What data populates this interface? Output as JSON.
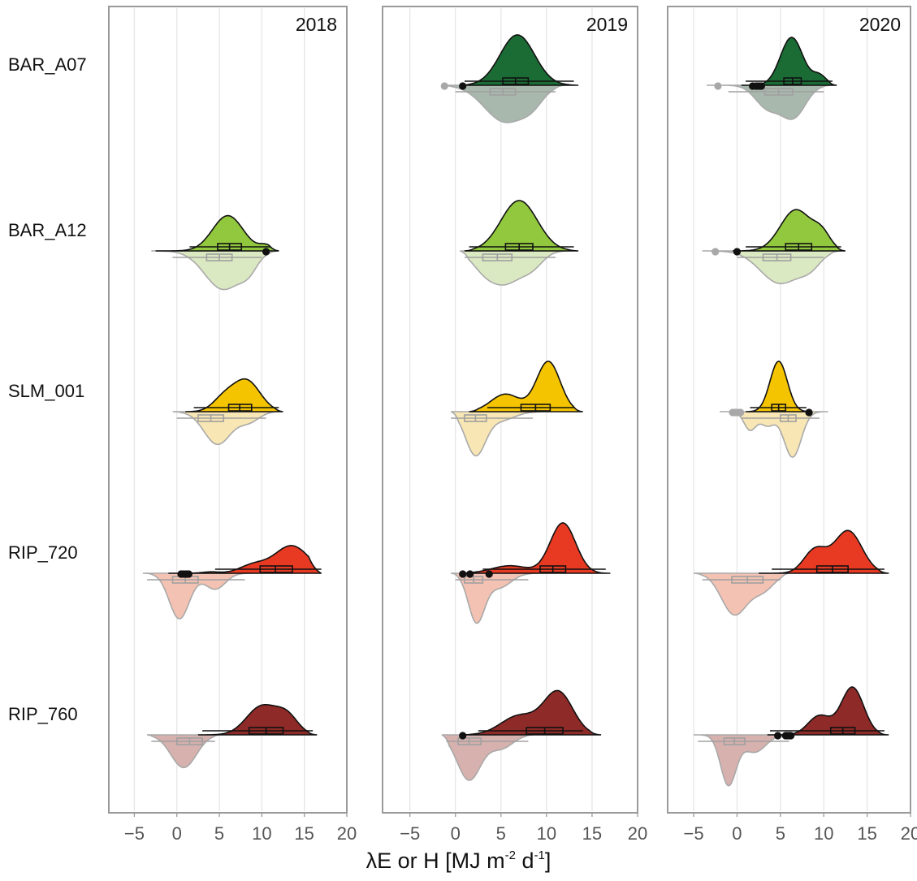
{
  "chart_data": {
    "type": "split-violin",
    "x_axis": {
      "label_prefix": "λE or H [MJ m",
      "label_exp1": "-2",
      "label_mid": " d",
      "label_exp2": "-1",
      "label_suffix": "]",
      "range": [
        -8,
        20
      ],
      "ticks": [
        -5,
        0,
        5,
        10,
        15,
        20
      ],
      "tick_labels": [
        "−5",
        "0",
        "5",
        "10",
        "15",
        "20"
      ],
      "grid": true
    },
    "sites": [
      "BAR_A07",
      "BAR_A12",
      "SLM_001",
      "RIP_720",
      "RIP_760"
    ],
    "years": [
      "2018",
      "2019",
      "2020"
    ],
    "series_note_upper": "λE",
    "series_note_lower": "H",
    "colors": {
      "BAR_A07": {
        "upper": "#1b6b35",
        "lower": "#a9b8ac"
      },
      "BAR_A12": {
        "upper": "#92c83e",
        "lower": "#dbe9c2"
      },
      "SLM_001": {
        "upper": "#f5c400",
        "lower": "#f8e6b4"
      },
      "RIP_720": {
        "upper": "#e83a23",
        "lower": "#f4c2b2"
      },
      "RIP_760": {
        "upper": "#8e2a28",
        "lower": "#d7b1ae"
      }
    },
    "panels": [
      {
        "year": "2018",
        "violins": [
          null,
          {
            "site": "BAR_A12",
            "upper": {
              "range": [
                -2.5,
                12
              ],
              "peaks": [
                [
                  6,
                  1.0,
                  1.8
                ],
                [
                  10.5,
                  0.15,
                  0.8
                ]
              ],
              "q": [
                4.8,
                6.2,
                7.6
              ],
              "whisker": [
                1.5,
                11
              ],
              "outliers": [
                10.5
              ],
              "amp": 0.7
            },
            "lower": {
              "range": [
                -3,
                12
              ],
              "peaks": [
                [
                  5.5,
                  1.0,
                  2.2
                ],
                [
                  8.5,
                  0.3,
                  1.0
                ]
              ],
              "q": [
                3.5,
                5.0,
                6.5
              ],
              "whisker": [
                -0.5,
                10
              ],
              "outliers": [],
              "amp": 0.85
            }
          },
          {
            "site": "SLM_001",
            "upper": {
              "range": [
                1,
                12.5
              ],
              "peaks": [
                [
                  8.2,
                  1.0,
                  1.6
                ],
                [
                  5.5,
                  0.4,
                  1.3
                ]
              ],
              "q": [
                6.1,
                7.4,
                8.8
              ],
              "whisker": [
                2,
                12
              ],
              "outliers": [],
              "amp": 0.65
            },
            "lower": {
              "range": [
                -0.5,
                12
              ],
              "peaks": [
                [
                  4.8,
                  1.0,
                  1.6
                ],
                [
                  8.5,
                  0.3,
                  1.2
                ]
              ],
              "q": [
                2.5,
                4.0,
                5.5
              ],
              "whisker": [
                0,
                10.5
              ],
              "outliers": [],
              "amp": 0.72
            }
          },
          {
            "site": "RIP_720",
            "upper": {
              "range": [
                -1,
                17
              ],
              "peaks": [
                [
                  13.5,
                  1.0,
                  2.0
                ],
                [
                  9,
                  0.3,
                  1.6
                ],
                [
                  4,
                  0.05,
                  1.0
                ]
              ],
              "q": [
                9.8,
                11.6,
                13.6
              ],
              "whisker": [
                4.5,
                17
              ],
              "outliers": [
                0.5,
                0.8,
                1.1,
                1.4
              ],
              "amp": 0.55
            },
            "lower": {
              "range": [
                -4,
                9
              ],
              "peaks": [
                [
                  0.3,
                  1.0,
                  1.2
                ],
                [
                  4.5,
                  0.35,
                  1.2
                ]
              ],
              "q": [
                -0.5,
                1.0,
                2.5
              ],
              "whisker": [
                -3.5,
                8
              ],
              "outliers": [],
              "amp": 1.0
            }
          },
          {
            "site": "RIP_760",
            "upper": {
              "range": [
                2.5,
                16.5
              ],
              "peaks": [
                [
                  10,
                  1.0,
                  1.8
                ],
                [
                  13,
                  0.6,
                  1.3
                ]
              ],
              "q": [
                8.5,
                10.5,
                12.5
              ],
              "whisker": [
                3,
                16
              ],
              "outliers": [],
              "amp": 0.6
            },
            "lower": {
              "range": [
                -3.5,
                5
              ],
              "peaks": [
                [
                  0.8,
                  1.0,
                  1.5
                ]
              ],
              "q": [
                0.0,
                1.5,
                3.0
              ],
              "whisker": [
                -3,
                4.5
              ],
              "outliers": [],
              "amp": 0.72
            }
          }
        ]
      },
      {
        "year": "2019",
        "violins": [
          {
            "site": "BAR_A07",
            "upper": {
              "range": [
                0.5,
                13.5
              ],
              "peaks": [
                [
                  6.8,
                  1.0,
                  1.9
                ]
              ],
              "q": [
                5.2,
                6.6,
                8.0
              ],
              "whisker": [
                1,
                13
              ],
              "outliers": [
                0.8
              ],
              "amp": 1.0
            },
            "lower": {
              "range": [
                -1.5,
                12
              ],
              "peaks": [
                [
                  5.5,
                  1.0,
                  2.3
                ],
                [
                  8.5,
                  0.3,
                  1.2
                ]
              ],
              "q": [
                3.8,
                5.2,
                6.6
              ],
              "whisker": [
                0,
                11
              ],
              "outliers": [
                -1.2
              ],
              "amp": 0.82
            }
          },
          {
            "site": "BAR_A12",
            "upper": {
              "range": [
                1,
                13.5
              ],
              "peaks": [
                [
                  7,
                  1.0,
                  2.0
                ]
              ],
              "q": [
                5.5,
                7.0,
                8.5
              ],
              "whisker": [
                1.5,
                13
              ],
              "outliers": [],
              "amp": 1.0
            },
            "lower": {
              "range": [
                0.5,
                12.5
              ],
              "peaks": [
                [
                  5.5,
                  1.0,
                  1.8
                ],
                [
                  3,
                  0.4,
                  1.3
                ],
                [
                  8.5,
                  0.4,
                  1.2
                ]
              ],
              "q": [
                3.0,
                4.6,
                6.2
              ],
              "whisker": [
                1,
                11
              ],
              "outliers": [],
              "amp": 0.75
            }
          },
          {
            "site": "SLM_001",
            "upper": {
              "range": [
                1.5,
                14
              ],
              "peaks": [
                [
                  10.2,
                  1.0,
                  1.3
                ],
                [
                  5.5,
                  0.35,
                  1.6
                ]
              ],
              "q": [
                7.2,
                8.8,
                10.4
              ],
              "whisker": [
                3.5,
                13
              ],
              "outliers": [],
              "amp": 1.0
            },
            "lower": {
              "range": [
                -0.5,
                9.5
              ],
              "peaks": [
                [
                  2.2,
                  1.0,
                  1.1
                ],
                [
                  5,
                  0.2,
                  1.5
                ]
              ],
              "q": [
                1.0,
                2.2,
                3.4
              ],
              "whisker": [
                -0.5,
                8.5
              ],
              "outliers": [],
              "amp": 0.97
            }
          },
          {
            "site": "RIP_720",
            "upper": {
              "range": [
                0.5,
                17
              ],
              "peaks": [
                [
                  11.8,
                  1.0,
                  1.4
                ],
                [
                  6,
                  0.15,
                  2.0
                ]
              ],
              "q": [
                9.3,
                10.7,
                12.1
              ],
              "whisker": [
                3,
                16.5
              ],
              "outliers": [
                0.8,
                1.6,
                3.7
              ],
              "amp": 1.0
            },
            "lower": {
              "range": [
                -0.5,
                9
              ],
              "peaks": [
                [
                  2.3,
                  1.0,
                  0.9
                ],
                [
                  4.8,
                  0.3,
                  1.3
                ]
              ],
              "q": [
                1.0,
                2.0,
                3.0
              ],
              "whisker": [
                0,
                8
              ],
              "outliers": [],
              "amp": 1.1
            }
          },
          {
            "site": "RIP_760",
            "upper": {
              "range": [
                0.5,
                16
              ],
              "peaks": [
                [
                  11.3,
                  1.0,
                  1.6
                ],
                [
                  7,
                  0.45,
                  2.0
                ]
              ],
              "q": [
                7.8,
                9.8,
                11.8
              ],
              "whisker": [
                2.5,
                14
              ],
              "outliers": [
                0.8
              ],
              "amp": 0.88
            },
            "lower": {
              "range": [
                -1.5,
                8.5
              ],
              "peaks": [
                [
                  1.5,
                  1.0,
                  1.3
                ],
                [
                  5,
                  0.3,
                  1.3
                ]
              ],
              "q": [
                0.3,
                1.5,
                2.8
              ],
              "whisker": [
                -1,
                8
              ],
              "outliers": [],
              "amp": 1.0
            }
          }
        ]
      },
      {
        "year": "2020",
        "violins": [
          {
            "site": "BAR_A07",
            "upper": {
              "range": [
                0.5,
                11.5
              ],
              "peaks": [
                [
                  6.3,
                  1.0,
                  1.3
                ],
                [
                  9.5,
                  0.2,
                  0.8
                ]
              ],
              "q": [
                5.4,
                6.4,
                7.4
              ],
              "whisker": [
                1,
                11
              ],
              "outliers": [
                1.8,
                2.2,
                2.5,
                2.8
              ],
              "amp": 0.95
            },
            "lower": {
              "range": [
                -3.5,
                11
              ],
              "peaks": [
                [
                  6.5,
                  1.0,
                  1.4
                ],
                [
                  3.5,
                  0.7,
                  1.4
                ]
              ],
              "q": [
                3.2,
                4.8,
                6.4
              ],
              "whisker": [
                -1,
                10
              ],
              "outliers": [
                -2.2
              ],
              "amp": 0.75
            }
          },
          {
            "site": "BAR_A12",
            "upper": {
              "range": [
                -0.5,
                12.5
              ],
              "peaks": [
                [
                  6.8,
                  1.0,
                  1.8
                ],
                [
                  9.8,
                  0.35,
                  1.0
                ]
              ],
              "q": [
                5.6,
                7.1,
                8.6
              ],
              "whisker": [
                1,
                12
              ],
              "outliers": [
                0
              ],
              "amp": 0.82
            },
            "lower": {
              "range": [
                -4,
                12
              ],
              "peaks": [
                [
                  5,
                  1.0,
                  2.3
                ],
                [
                  8.5,
                  0.35,
                  1.2
                ]
              ],
              "q": [
                3.0,
                4.6,
                6.2
              ],
              "whisker": [
                0,
                10
              ],
              "outliers": [
                -2.5
              ],
              "amp": 0.72
            }
          },
          {
            "site": "SLM_001",
            "upper": {
              "range": [
                1,
                8.5
              ],
              "peaks": [
                [
                  4.8,
                  1.0,
                  1.0
                ]
              ],
              "q": [
                4.0,
                4.8,
                5.6
              ],
              "whisker": [
                1.5,
                8
              ],
              "outliers": [
                8.3
              ],
              "amp": 1.0
            },
            "lower": {
              "range": [
                -2,
                10.5
              ],
              "peaks": [
                [
                  6.4,
                  1.0,
                  1.0
                ],
                [
                  1.5,
                  0.4,
                  0.7
                ],
                [
                  3.5,
                  0.3,
                  0.8
                ]
              ],
              "q": [
                5.0,
                5.9,
                6.8
              ],
              "whisker": [
                0.5,
                9.5
              ],
              "outliers": [
                -0.5,
                -0.2,
                0.1,
                0.4
              ],
              "amp": 1.0
            }
          },
          {
            "site": "RIP_720",
            "upper": {
              "range": [
                2.5,
                17.5
              ],
              "peaks": [
                [
                  12.8,
                  1.0,
                  1.6
                ],
                [
                  9,
                  0.55,
                  1.3
                ]
              ],
              "q": [
                9.2,
                11.0,
                12.8
              ],
              "whisker": [
                4,
                17
              ],
              "outliers": [],
              "amp": 0.85
            },
            "lower": {
              "range": [
                -5,
                6
              ],
              "peaks": [
                [
                  -0.3,
                  1.0,
                  1.5
                ],
                [
                  3,
                  0.4,
                  1.3
                ]
              ],
              "q": [
                -0.6,
                1.2,
                3.0
              ],
              "whisker": [
                -4,
                5
              ],
              "outliers": [],
              "amp": 0.92
            }
          },
          {
            "site": "RIP_760",
            "upper": {
              "range": [
                3.5,
                17.5
              ],
              "peaks": [
                [
                  13.3,
                  1.0,
                  1.3
                ],
                [
                  9.5,
                  0.4,
                  1.3
                ]
              ],
              "q": [
                10.8,
                12.2,
                13.6
              ],
              "whisker": [
                3.8,
                17
              ],
              "outliers": [
                4.7,
                5.6,
                5.8,
                6.0,
                6.2
              ],
              "amp": 0.95
            },
            "lower": {
              "range": [
                -5,
                6.5
              ],
              "peaks": [
                [
                  -1.0,
                  1.0,
                  0.9
                ],
                [
                  2,
                  0.35,
                  1.3
                ]
              ],
              "q": [
                -1.5,
                -0.3,
                0.9
              ],
              "whisker": [
                -4.5,
                6
              ],
              "outliers": [],
              "amp": 1.12
            }
          }
        ]
      }
    ]
  }
}
